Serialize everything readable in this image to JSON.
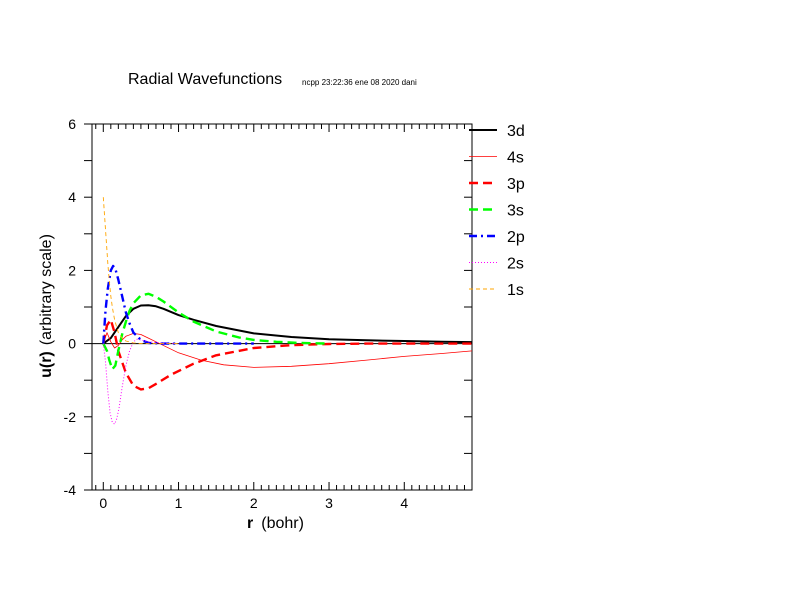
{
  "chart_data": {
    "type": "line",
    "title": "Radial Wavefunctions",
    "subtitle": "ncpp 23:22:36 ene 08 2020 dani",
    "xlabel_bold": "r",
    "xlabel_rest": "(bohr)",
    "ylabel_bold": "u(r)",
    "ylabel_rest": "(arbitrary scale)",
    "xlim": [
      -0.15,
      4.9
    ],
    "ylim": [
      -4,
      6
    ],
    "xticks": [
      0,
      1,
      2,
      3,
      4
    ],
    "xtick_labels": [
      "0",
      "1",
      "2",
      "3",
      "4"
    ],
    "yticks": [
      -4,
      -2,
      0,
      2,
      4,
      6
    ],
    "ytick_labels": [
      "-4",
      "-2",
      "0",
      "2",
      "4",
      "6"
    ],
    "grid": false,
    "zero_line": true,
    "legend_placement": "right",
    "series": [
      {
        "name": "3d",
        "color": "#000000",
        "style": "solid-thick",
        "x": [
          0,
          0.1,
          0.2,
          0.3,
          0.4,
          0.5,
          0.6,
          0.7,
          0.8,
          1.0,
          1.2,
          1.5,
          2.0,
          2.5,
          3.0,
          3.5,
          4.0,
          4.5,
          4.9
        ],
        "y": [
          0,
          0.15,
          0.45,
          0.75,
          0.95,
          1.04,
          1.05,
          1.02,
          0.95,
          0.78,
          0.65,
          0.48,
          0.28,
          0.18,
          0.12,
          0.09,
          0.07,
          0.05,
          0.04
        ]
      },
      {
        "name": "4s",
        "color": "#ff0000",
        "style": "solid-thin",
        "x": [
          0,
          0.05,
          0.1,
          0.15,
          0.2,
          0.25,
          0.3,
          0.4,
          0.5,
          0.6,
          0.7,
          0.85,
          1.0,
          1.3,
          1.6,
          2.0,
          2.5,
          3.0,
          3.5,
          4.0,
          4.5,
          4.9
        ],
        "y": [
          0,
          0.3,
          0.05,
          -0.12,
          -0.05,
          0.1,
          0.2,
          0.28,
          0.25,
          0.15,
          0.05,
          -0.1,
          -0.25,
          -0.45,
          -0.58,
          -0.65,
          -0.62,
          -0.55,
          -0.45,
          -0.35,
          -0.27,
          -0.2
        ]
      },
      {
        "name": "3p",
        "color": "#ff0000",
        "style": "dashed-thick",
        "x": [
          0,
          0.05,
          0.1,
          0.15,
          0.2,
          0.3,
          0.4,
          0.5,
          0.6,
          0.7,
          0.9,
          1.2,
          1.5,
          2.0,
          2.5,
          3.0,
          3.5,
          4.0,
          4.5,
          4.9
        ],
        "y": [
          0,
          0.5,
          0.65,
          0.3,
          -0.2,
          -0.8,
          -1.15,
          -1.25,
          -1.22,
          -1.1,
          -0.85,
          -0.55,
          -0.32,
          -0.12,
          -0.04,
          -0.01,
          0,
          0,
          0,
          0
        ]
      },
      {
        "name": "3s",
        "color": "#00ff00",
        "style": "dashed-thick",
        "x": [
          0,
          0.05,
          0.08,
          0.12,
          0.16,
          0.2,
          0.25,
          0.3,
          0.35,
          0.4,
          0.5,
          0.6,
          0.7,
          0.8,
          1.0,
          1.2,
          1.5,
          1.8,
          2.0,
          2.3,
          2.6,
          3.0
        ],
        "y": [
          0,
          -0.2,
          -0.45,
          -0.7,
          -0.6,
          -0.2,
          0.25,
          0.6,
          0.9,
          1.1,
          1.32,
          1.36,
          1.28,
          1.15,
          0.85,
          0.6,
          0.33,
          0.17,
          0.1,
          0.05,
          0.02,
          0.0
        ]
      },
      {
        "name": "2p",
        "color": "#0000ff",
        "style": "dashdot-thick",
        "x": [
          0,
          0.03,
          0.06,
          0.1,
          0.13,
          0.16,
          0.2,
          0.25,
          0.3,
          0.35,
          0.4,
          0.5,
          0.6,
          0.8,
          1.0,
          1.5,
          2.0
        ],
        "y": [
          0,
          0.9,
          1.5,
          2.0,
          2.12,
          2.05,
          1.75,
          1.3,
          0.85,
          0.55,
          0.3,
          0.1,
          0.02,
          0,
          0,
          0,
          0
        ]
      },
      {
        "name": "2s",
        "color": "#ff00ff",
        "style": "dotted",
        "x": [
          0,
          0.03,
          0.06,
          0.09,
          0.12,
          0.15,
          0.18,
          0.21,
          0.25,
          0.3,
          0.35,
          0.4,
          0.45,
          0.5,
          0.6,
          0.8,
          1.0
        ],
        "y": [
          0,
          -0.5,
          -1.3,
          -1.9,
          -2.15,
          -2.2,
          -2.05,
          -1.75,
          -1.2,
          -0.6,
          -0.2,
          0.05,
          0.12,
          0.1,
          0.05,
          0.01,
          0
        ]
      },
      {
        "name": "1s",
        "color": "#ffa500",
        "style": "dashed-thin",
        "x": [
          0,
          0.02,
          0.04,
          0.06,
          0.08,
          0.1,
          0.12,
          0.15,
          0.2,
          0.25,
          0.3,
          0.4,
          0.5,
          0.7,
          1.0
        ],
        "y": [
          4.0,
          3.4,
          2.8,
          2.2,
          1.7,
          1.3,
          1.0,
          0.65,
          0.3,
          0.15,
          0.07,
          0.02,
          0,
          0,
          0
        ]
      }
    ]
  }
}
